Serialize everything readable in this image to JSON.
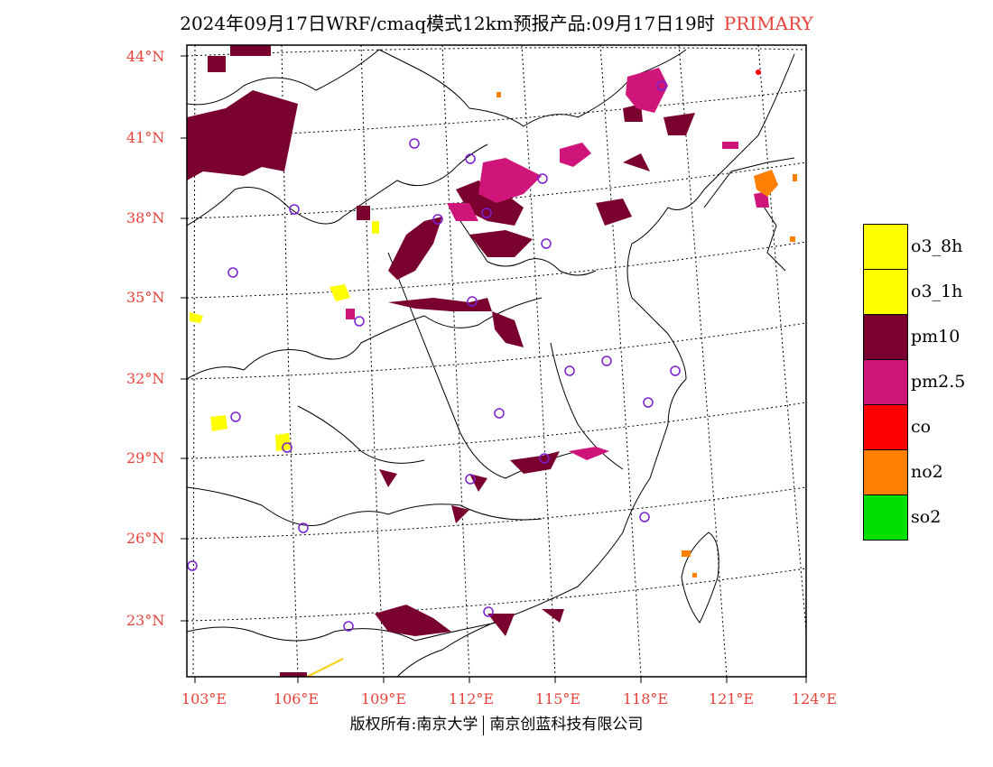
{
  "title": {
    "main": "2024年09月17日WRF/cmaq模式12km预报产品:09月17日19时",
    "accent": "PRIMARY"
  },
  "axes": {
    "lat_labels": [
      "44°N",
      "41°N",
      "38°N",
      "35°N",
      "32°N",
      "29°N",
      "26°N",
      "23°N"
    ],
    "lon_labels": [
      "103°E",
      "106°E",
      "109°E",
      "112°E",
      "115°E",
      "118°E",
      "121°E",
      "124°E"
    ]
  },
  "legend": [
    {
      "label": "o3_8h",
      "color": "#ffff00"
    },
    {
      "label": "o3_1h",
      "color": "#ffff00"
    },
    {
      "label": "pm10",
      "color": "#7a0030"
    },
    {
      "label": "pm2.5",
      "color": "#d0157a"
    },
    {
      "label": "co",
      "color": "#ff0000"
    },
    {
      "label": "no2",
      "color": "#ff7f00"
    },
    {
      "label": "so2",
      "color": "#00e000"
    }
  ],
  "footer": {
    "left": "版权所有:南京大学",
    "right": "南京创蓝科技有限公司"
  }
}
